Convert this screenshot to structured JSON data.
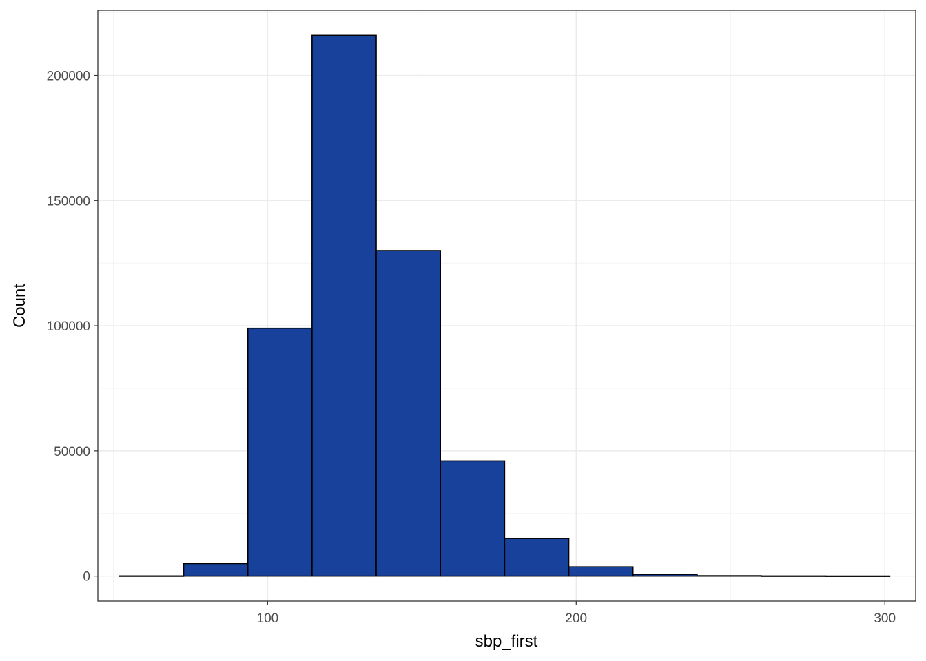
{
  "chart_data": {
    "type": "bar",
    "subtype": "histogram",
    "title": "",
    "xlabel": "sbp_first",
    "ylabel": "Count",
    "xlim": [
      45,
      310
    ],
    "ylim": [
      -10000,
      226000
    ],
    "x_ticks": [
      100,
      200,
      300
    ],
    "y_ticks": [
      0,
      50000,
      100000,
      150000,
      200000
    ],
    "x_tick_labels": [
      "100",
      "200",
      "300"
    ],
    "y_tick_labels": [
      "0",
      "50000",
      "100000",
      "150000",
      "200000"
    ],
    "grid": true,
    "legend": "none",
    "bin_width": 20.8,
    "bins": [
      {
        "x0": 52.0,
        "x1": 72.8,
        "count": 80
      },
      {
        "x0": 72.8,
        "x1": 93.6,
        "count": 5000
      },
      {
        "x0": 93.6,
        "x1": 114.4,
        "count": 99000
      },
      {
        "x0": 114.4,
        "x1": 135.2,
        "count": 216000
      },
      {
        "x0": 135.2,
        "x1": 156.0,
        "count": 130000
      },
      {
        "x0": 156.0,
        "x1": 176.8,
        "count": 46000
      },
      {
        "x0": 176.8,
        "x1": 197.6,
        "count": 15000
      },
      {
        "x0": 197.6,
        "x1": 218.4,
        "count": 3700
      },
      {
        "x0": 218.4,
        "x1": 239.2,
        "count": 700
      },
      {
        "x0": 239.2,
        "x1": 260.0,
        "count": 150
      },
      {
        "x0": 260.0,
        "x1": 280.8,
        "count": 60
      },
      {
        "x0": 280.8,
        "x1": 301.6,
        "count": 30
      }
    ],
    "colors": {
      "fill": "#17419a",
      "outline": "#000000"
    }
  }
}
